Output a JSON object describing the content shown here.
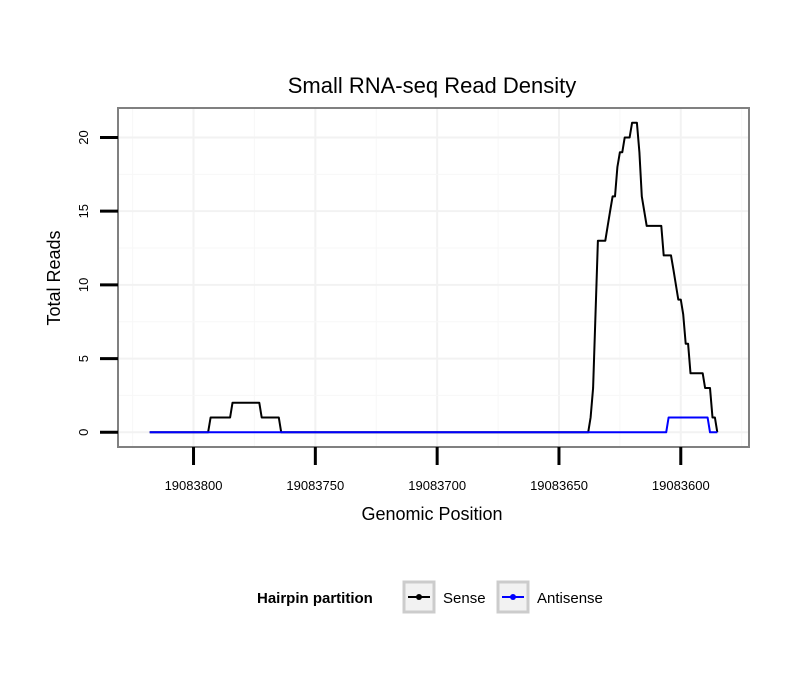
{
  "chart_data": {
    "type": "line",
    "title": "Small RNA-seq Read Density",
    "xlabel": "Genomic Position",
    "ylabel": "Total Reads",
    "x_reversed": true,
    "xlim": [
      19083831,
      19083572
    ],
    "ylim": [
      -1,
      22
    ],
    "x_ticks": [
      19083800,
      19083750,
      19083700,
      19083650,
      19083600
    ],
    "x_tick_labels": [
      "19083800",
      "19083750",
      "19083700",
      "19083650",
      "19083600"
    ],
    "y_ticks": [
      0,
      5,
      10,
      15,
      20
    ],
    "y_tick_labels": [
      "0",
      "5",
      "10",
      "15",
      "20"
    ],
    "grid": true,
    "legend": {
      "title": "Hairpin partition",
      "position": "bottom"
    },
    "series": [
      {
        "name": "Sense",
        "color": "#000000",
        "points": [
          [
            19083818,
            0
          ],
          [
            19083794,
            0
          ],
          [
            19083793,
            1
          ],
          [
            19083785,
            1
          ],
          [
            19083784,
            2
          ],
          [
            19083773,
            2
          ],
          [
            19083772,
            1
          ],
          [
            19083765,
            1
          ],
          [
            19083764,
            0
          ],
          [
            19083638,
            0
          ],
          [
            19083637,
            1
          ],
          [
            19083636,
            3
          ],
          [
            19083635,
            8
          ],
          [
            19083634,
            13
          ],
          [
            19083631,
            13
          ],
          [
            19083630,
            14
          ],
          [
            19083629,
            15
          ],
          [
            19083628,
            16
          ],
          [
            19083627,
            16
          ],
          [
            19083626,
            18
          ],
          [
            19083625,
            19
          ],
          [
            19083624,
            19
          ],
          [
            19083623,
            20
          ],
          [
            19083621,
            20
          ],
          [
            19083620,
            21
          ],
          [
            19083618,
            21
          ],
          [
            19083617,
            19
          ],
          [
            19083616,
            16
          ],
          [
            19083614,
            14
          ],
          [
            19083608,
            14
          ],
          [
            19083607,
            12
          ],
          [
            19083604,
            12
          ],
          [
            19083603,
            11
          ],
          [
            19083602,
            10
          ],
          [
            19083601,
            9
          ],
          [
            19083600,
            9
          ],
          [
            19083599,
            8
          ],
          [
            19083598,
            6
          ],
          [
            19083597,
            6
          ],
          [
            19083596,
            4
          ],
          [
            19083591,
            4
          ],
          [
            19083590,
            3
          ],
          [
            19083588,
            3
          ],
          [
            19083587,
            1
          ],
          [
            19083586,
            1
          ],
          [
            19083585,
            0
          ]
        ]
      },
      {
        "name": "Antisense",
        "color": "#0000ff",
        "points": [
          [
            19083818,
            0
          ],
          [
            19083606,
            0
          ],
          [
            19083605,
            1
          ],
          [
            19083589,
            1
          ],
          [
            19083588,
            0
          ],
          [
            19083585,
            0
          ]
        ]
      }
    ]
  }
}
